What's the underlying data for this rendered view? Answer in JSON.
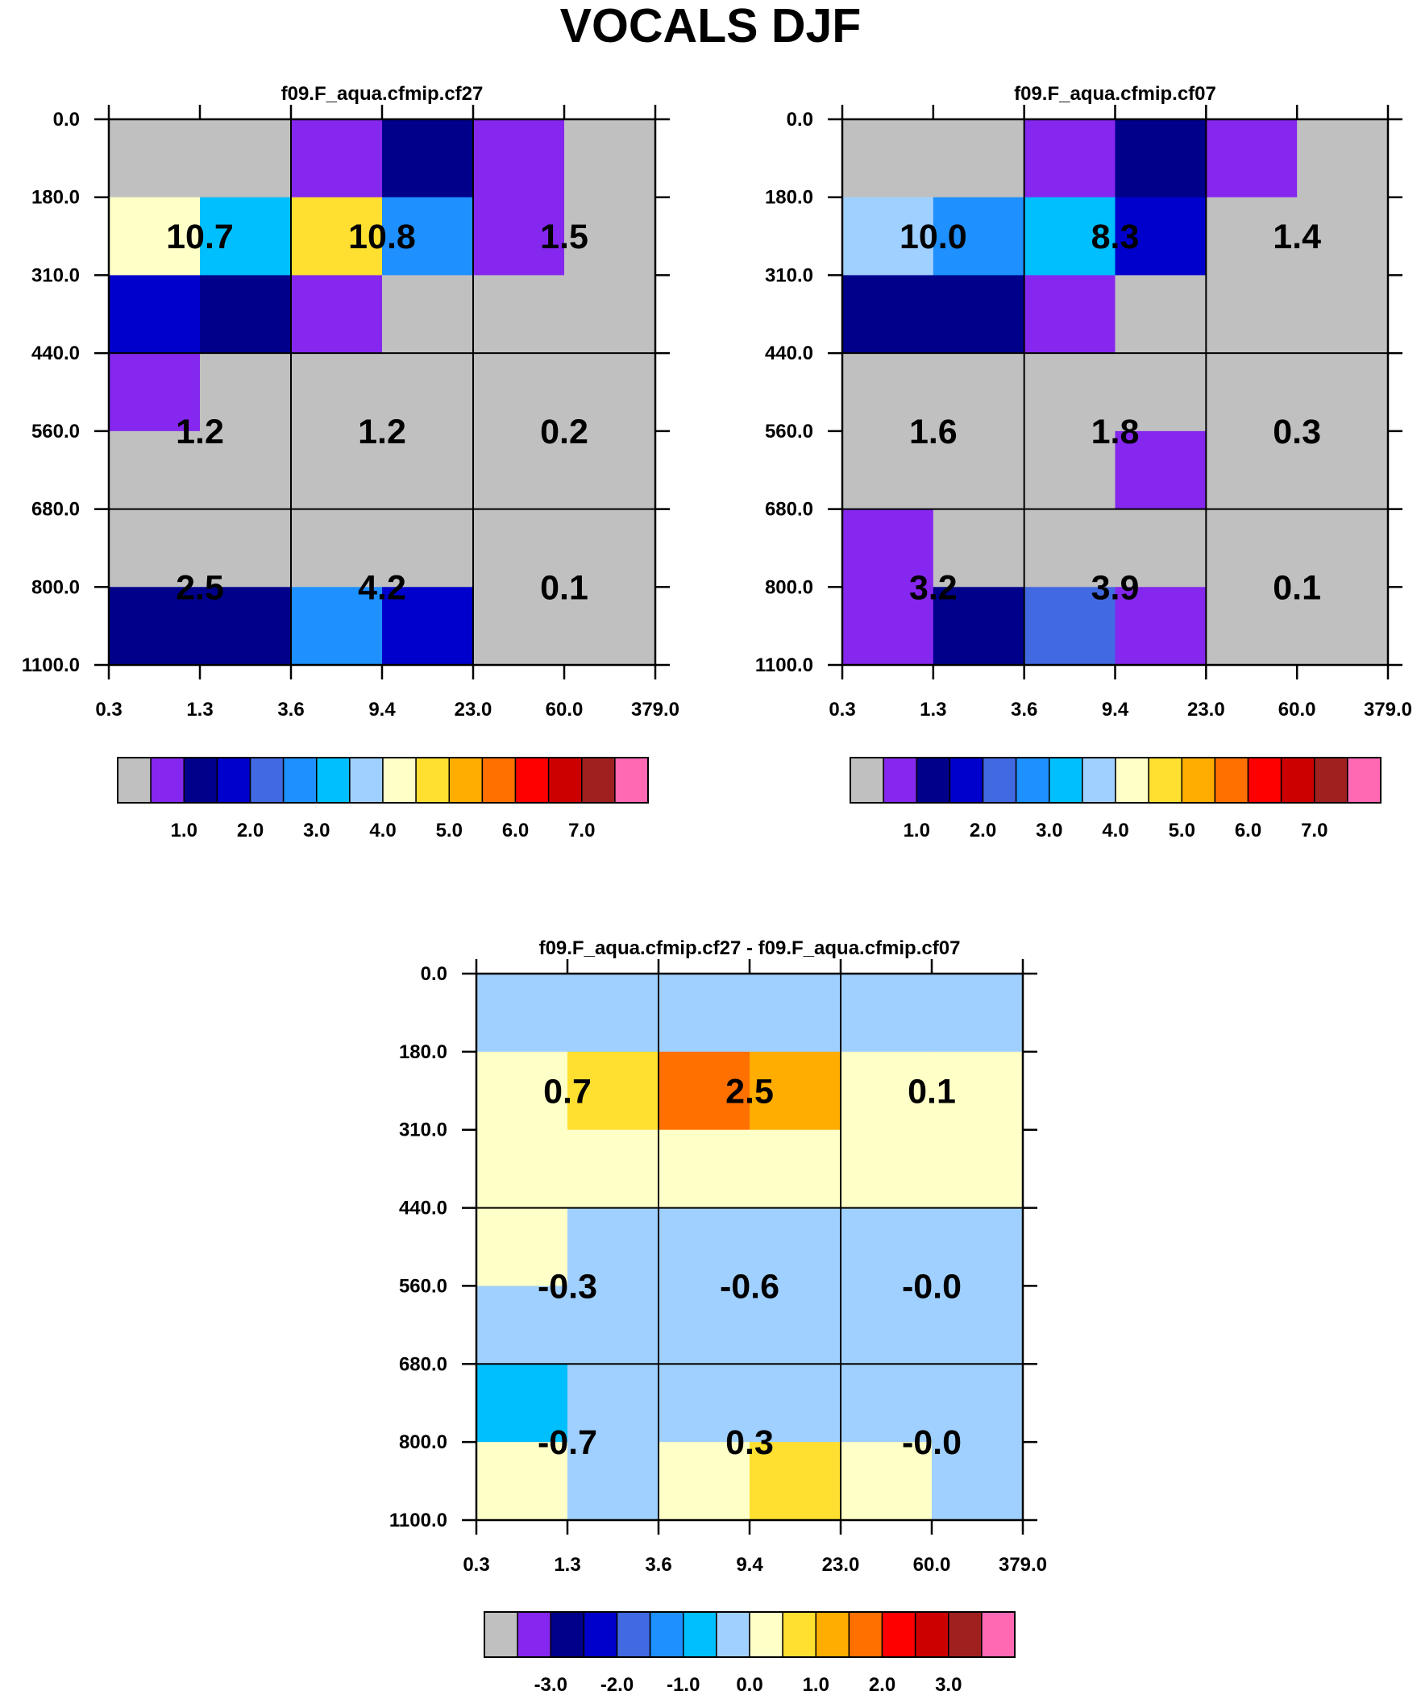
{
  "title": "VOCALS DJF",
  "colors": {
    "palette": [
      "#c0c0c0",
      "#8527ee",
      "#00008b",
      "#0000cd",
      "#4169e1",
      "#1e90ff",
      "#00bfff",
      "#a0d0ff",
      "#ffffc8",
      "#ffdf30",
      "#ffad00",
      "#ff7000",
      "#ff0000",
      "#cd0000",
      "#a02020",
      "#ff69b4"
    ]
  },
  "chart_data": [
    {
      "type": "heatmap",
      "title": "f09.F_aqua.cfmip.cf27",
      "xticks": [
        "0.3",
        "1.3",
        "3.6",
        "9.4",
        "23.0",
        "60.0",
        "379.0"
      ],
      "yticks": [
        "0.0",
        "180.0",
        "310.0",
        "440.0",
        "560.0",
        "680.0",
        "800.0",
        "1100.0"
      ],
      "cell_colors": [
        [
          0,
          0,
          1,
          2,
          1,
          0
        ],
        [
          8,
          6,
          9,
          5,
          1,
          0
        ],
        [
          3,
          2,
          1,
          0,
          0,
          0
        ],
        [
          1,
          0,
          0,
          0,
          0,
          0
        ],
        [
          0,
          0,
          0,
          0,
          0,
          0
        ],
        [
          0,
          0,
          0,
          0,
          0,
          0
        ],
        [
          2,
          2,
          5,
          3,
          0,
          0
        ]
      ],
      "box_values": [
        [
          "10.7",
          "10.8",
          "1.5"
        ],
        [
          "1.2",
          "1.2",
          "0.2"
        ],
        [
          "2.5",
          "4.2",
          "0.1"
        ]
      ],
      "colorbar_labels": [
        "1.0",
        "2.0",
        "3.0",
        "4.0",
        "5.0",
        "6.0",
        "7.0"
      ]
    },
    {
      "type": "heatmap",
      "title": "f09.F_aqua.cfmip.cf07",
      "xticks": [
        "0.3",
        "1.3",
        "3.6",
        "9.4",
        "23.0",
        "60.0",
        "379.0"
      ],
      "yticks": [
        "0.0",
        "180.0",
        "310.0",
        "440.0",
        "560.0",
        "680.0",
        "800.0",
        "1100.0"
      ],
      "cell_colors": [
        [
          0,
          0,
          1,
          2,
          1,
          0
        ],
        [
          7,
          5,
          6,
          3,
          0,
          0
        ],
        [
          2,
          2,
          1,
          0,
          0,
          0
        ],
        [
          0,
          0,
          0,
          0,
          0,
          0
        ],
        [
          0,
          0,
          0,
          1,
          0,
          0
        ],
        [
          1,
          0,
          0,
          0,
          0,
          0
        ],
        [
          1,
          2,
          4,
          1,
          0,
          0
        ]
      ],
      "box_values": [
        [
          "10.0",
          "8.3",
          "1.4"
        ],
        [
          "1.6",
          "1.8",
          "0.3"
        ],
        [
          "3.2",
          "3.9",
          "0.1"
        ]
      ],
      "colorbar_labels": [
        "1.0",
        "2.0",
        "3.0",
        "4.0",
        "5.0",
        "6.0",
        "7.0"
      ]
    },
    {
      "type": "heatmap",
      "title": "f09.F_aqua.cfmip.cf27 - f09.F_aqua.cfmip.cf07",
      "xticks": [
        "0.3",
        "1.3",
        "3.6",
        "9.4",
        "23.0",
        "60.0",
        "379.0"
      ],
      "yticks": [
        "0.0",
        "180.0",
        "310.0",
        "440.0",
        "560.0",
        "680.0",
        "800.0",
        "1100.0"
      ],
      "cell_colors": [
        [
          7,
          7,
          7,
          7,
          7,
          7
        ],
        [
          8,
          9,
          11,
          10,
          8,
          8
        ],
        [
          8,
          8,
          8,
          8,
          8,
          8
        ],
        [
          8,
          7,
          7,
          7,
          7,
          7
        ],
        [
          7,
          7,
          7,
          7,
          7,
          7
        ],
        [
          6,
          7,
          7,
          7,
          7,
          7
        ],
        [
          8,
          7,
          8,
          9,
          8,
          7
        ]
      ],
      "box_values": [
        [
          "0.7",
          "2.5",
          "0.1"
        ],
        [
          "-0.3",
          "-0.6",
          "-0.0"
        ],
        [
          "-0.7",
          "0.3",
          "-0.0"
        ]
      ],
      "colorbar_labels": [
        "-3.0",
        "-2.0",
        "-1.0",
        "0.0",
        "1.0",
        "2.0",
        "3.0"
      ]
    }
  ]
}
